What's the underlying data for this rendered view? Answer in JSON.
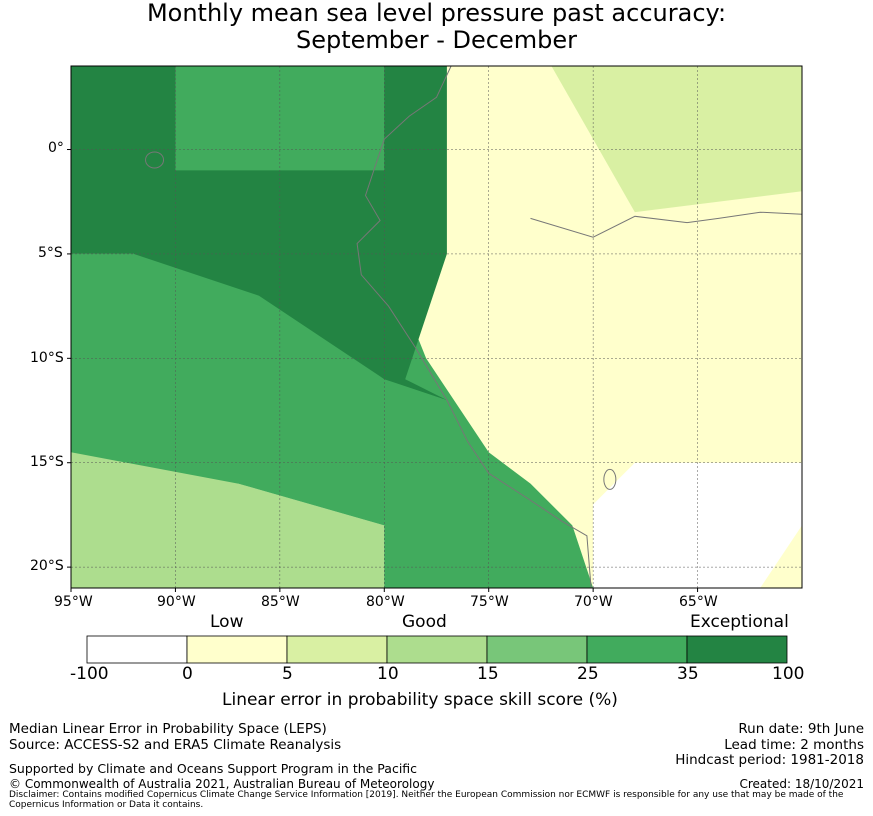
{
  "title_line1": "Monthly mean sea level pressure past accuracy:",
  "title_line2": "September - December",
  "map": {
    "lon_range": [
      -95,
      -60
    ],
    "lat_range": [
      -21,
      4
    ],
    "lon_ticks": [
      "95°W",
      "90°W",
      "85°W",
      "80°W",
      "75°W",
      "70°W",
      "65°W"
    ],
    "lat_ticks": [
      "0°",
      "5°S",
      "10°S",
      "15°S",
      "20°S"
    ],
    "gridlines": true
  },
  "colorbar": {
    "categories": [
      "Low",
      "Good",
      "Exceptional"
    ],
    "ticks": [
      "-100",
      "0",
      "5",
      "10",
      "15",
      "25",
      "35",
      "100"
    ],
    "colors": [
      "#ffffff",
      "#ffffcc",
      "#d9f0a3",
      "#addd8e",
      "#78c679",
      "#41ab5d",
      "#238443"
    ],
    "label": "Linear error in probability space skill score (%)"
  },
  "footer": {
    "left": [
      "Median Linear Error in Probability Space (LEPS)",
      "Source: ACCESS-S2 and ERA5 Climate Reanalysis",
      "Supported by Climate and Oceans Support Program in the Pacific",
      "© Commonwealth of Australia 2021, Australian Bureau of Meteorology"
    ],
    "right": [
      "Run date: 9th June",
      "Lead time: 2 months",
      "Hindcast period: 1981-2018",
      "Created: 18/10/2021"
    ],
    "disclaimer": "Disclaimer: Contains modified Copernicus Climate Change Service Information [2019]. Neither the European Commission nor ECMWF is responsible for any use that may be made of the Copernicus Information or Data it contains."
  }
}
